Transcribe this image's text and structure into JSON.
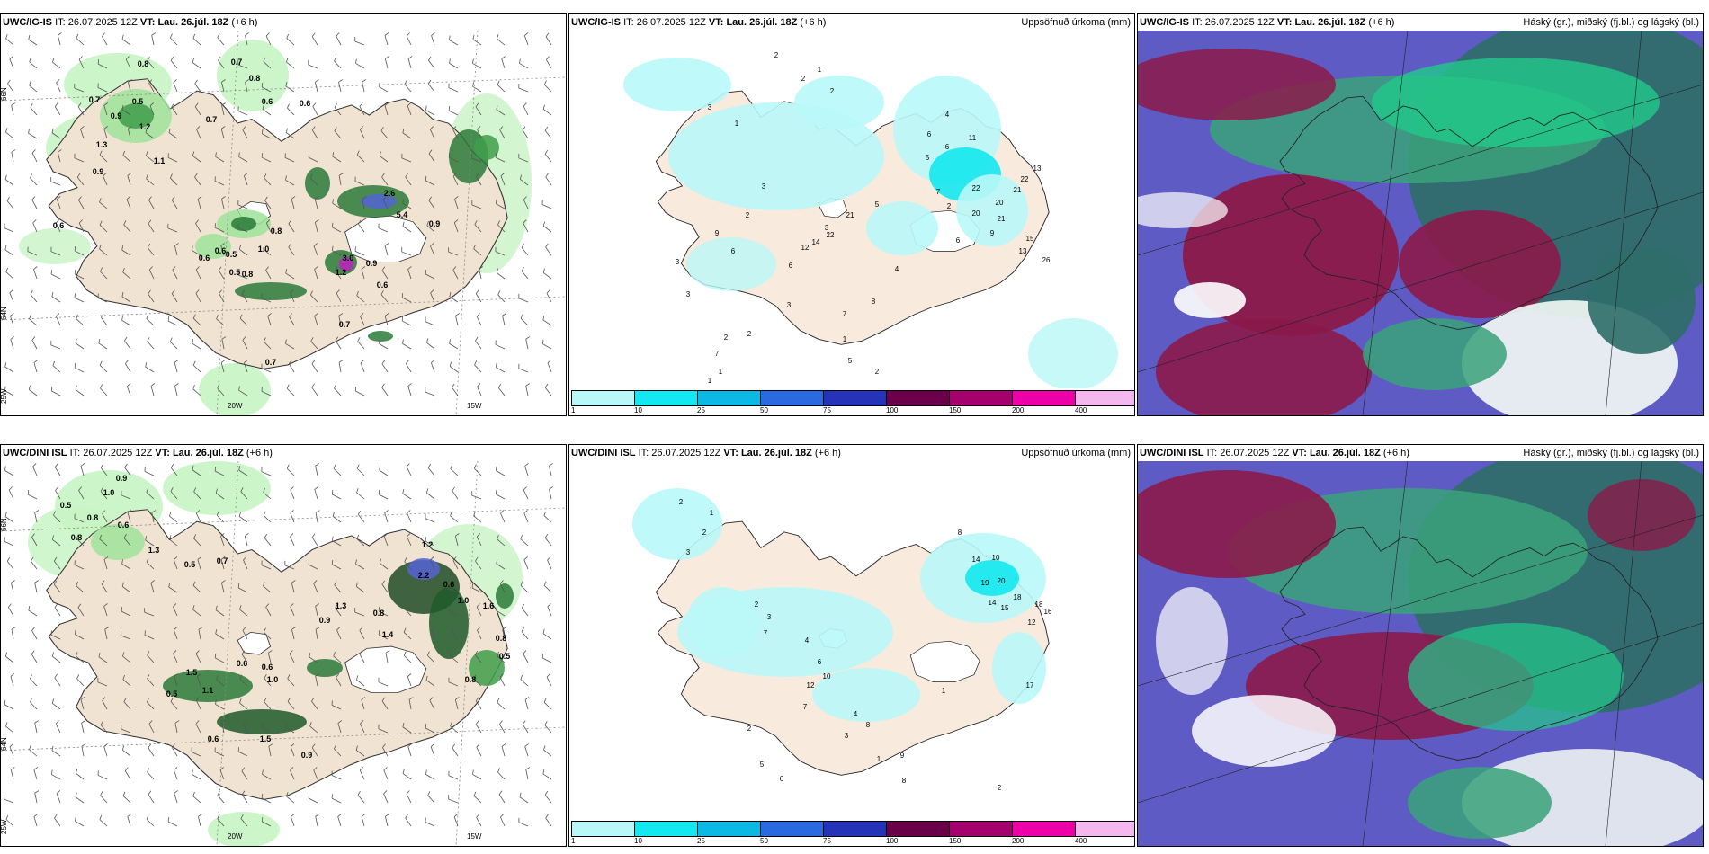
{
  "panels": [
    {
      "model": "UWC/IG-IS",
      "it_label": "IT:",
      "it": "26.07.2025 12Z",
      "vt_label": "VT:",
      "vt": "Lau. 26.júl. 18Z",
      "lead": "(+6 h)",
      "right_title": "",
      "kind": "cloud-wind"
    },
    {
      "model": "UWC/IG-IS",
      "it_label": "IT:",
      "it": "26.07.2025 12Z",
      "vt_label": "VT:",
      "vt": "Lau. 26.júl. 18Z",
      "lead": "(+6 h)",
      "right_title": "Uppsöfnuð úrkoma (mm)",
      "kind": "precip"
    },
    {
      "model": "UWC/IG-IS",
      "it_label": "IT:",
      "it": "26.07.2025 12Z",
      "vt_label": "VT:",
      "vt": "Lau. 26.júl. 18Z",
      "lead": "(+6 h)",
      "right_title": "Háský (gr.), miðský (fj.bl.) og lágský (bl.)",
      "kind": "clouds"
    },
    {
      "model": "UWC/DINI ISL",
      "it_label": "IT:",
      "it": "26.07.2025 12Z",
      "vt_label": "VT:",
      "vt": "Lau. 26.júl. 18Z",
      "lead": "(+6 h)",
      "right_title": "",
      "kind": "cloud-wind"
    },
    {
      "model": "UWC/DINI ISL",
      "it_label": "IT:",
      "it": "26.07.2025 12Z",
      "vt_label": "VT:",
      "vt": "Lau. 26.júl. 18Z",
      "lead": "(+6 h)",
      "right_title": "Uppsöfnuð úrkoma (mm)",
      "kind": "precip"
    },
    {
      "model": "UWC/DINI ISL",
      "it_label": "IT:",
      "it": "26.07.2025 12Z",
      "vt_label": "VT:",
      "vt": "Lau. 26.júl. 18Z",
      "lead": "(+6 h)",
      "right_title": "Háský (gr.), miðský (fj.bl.) og lágský (bl.)",
      "kind": "clouds"
    }
  ],
  "axis_labels": {
    "lat66": "66N",
    "lat64": "64N",
    "lon25": "25W",
    "lon20": "20W",
    "lon15": "15W"
  },
  "colorbar": {
    "labels": [
      "1",
      "10",
      "25",
      "50",
      "75",
      "100",
      "150",
      "200",
      "400"
    ],
    "colors": [
      "#b9f8f8",
      "#13e8f0",
      "#0cb8e4",
      "#2a6ae0",
      "#2433b8",
      "#6a004a",
      "#a4006e",
      "#ee00a8",
      "#f4b8ee"
    ]
  },
  "precip_values_top": [
    "2",
    "1",
    "2",
    "3",
    "1",
    "2",
    "4",
    "6",
    "11",
    "6",
    "5",
    "13",
    "22",
    "7",
    "2",
    "20",
    "20",
    "21",
    "21",
    "22",
    "9",
    "6",
    "15",
    "13",
    "26",
    "22",
    "14",
    "6",
    "12",
    "5",
    "21",
    "3",
    "3",
    "2",
    "9",
    "6",
    "7",
    "8",
    "4",
    "2",
    "7",
    "1",
    "1",
    "2",
    "3",
    "3",
    "3",
    "1",
    "5",
    "2"
  ],
  "precip_values_bottom": [
    "2",
    "1",
    "2",
    "3",
    "8",
    "14",
    "10",
    "19",
    "20",
    "18",
    "18",
    "16",
    "14",
    "15",
    "12",
    "2",
    "3",
    "7",
    "4",
    "6",
    "10",
    "12",
    "7",
    "4",
    "8",
    "3",
    "1",
    "9",
    "8",
    "17",
    "1",
    "2",
    "5",
    "6",
    "2"
  ],
  "cloud_values_top": [
    "0.8",
    "0.7",
    "0.8",
    "0.5",
    "0.9",
    "0.6",
    "0.7",
    "1.2",
    "1.1",
    "1.3",
    "0.9",
    "0.7",
    "0.6",
    "2.6",
    "5.4",
    "0.9",
    "3.0",
    "1.2",
    "0.6",
    "0.9",
    "0.6",
    "0.5",
    "0.8",
    "1.0",
    "0.8",
    "0.6",
    "0.7",
    "0.7",
    "0.5",
    "0.6"
  ],
  "cloud_values_bottom": [
    "0.9",
    "0.5",
    "1.0",
    "0.8",
    "0.6",
    "0.8",
    "1.3",
    "0.5",
    "0.7",
    "1.2",
    "2.2",
    "0.6",
    "1.0",
    "1.6",
    "0.8",
    "0.5",
    "0.8",
    "1.4",
    "0.9",
    "1.3",
    "1.0",
    "0.6",
    "0.6",
    "1.5",
    "0.5",
    "1.1",
    "0.8",
    "0.6",
    "0.9",
    "1.5"
  ]
}
